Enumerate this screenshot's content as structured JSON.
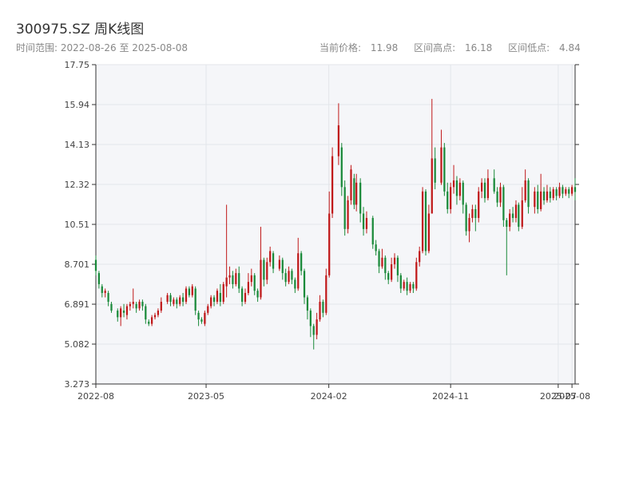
{
  "header": {
    "title": "300975.SZ 周K线图",
    "range_label": "时间范围:",
    "range_start": "2022-08-26",
    "range_sep": "至",
    "range_end": "2025-08-08",
    "current_label": "当前价格:",
    "current_value": "11.98",
    "high_label": "区间高点:",
    "high_value": "16.18",
    "low_label": "区间低点:",
    "low_value": "4.84"
  },
  "colors": {
    "up": "#c0191a",
    "down": "#1a8a3a",
    "grid": "#e3e6ea",
    "plot_bg": "#f5f6f9",
    "axis": "#333333"
  },
  "chart_data": {
    "type": "candlestick",
    "x_ticks": [
      "2022-08",
      "2023-05",
      "2024-02",
      "2024-11",
      "2025-07",
      "2025-08"
    ],
    "y_ticks": [
      "3.273",
      "5.082",
      "6.891",
      "8.701",
      "10.51",
      "12.32",
      "14.13",
      "15.94",
      "17.75"
    ],
    "ylim": [
      3.273,
      17.75
    ],
    "xlim": [
      "2022-08-26",
      "2025-08-08"
    ],
    "candles": [
      [
        "2022-08-26",
        8.9,
        8.4,
        9.1,
        8.2
      ],
      [
        "2022-09-02",
        8.3,
        7.8,
        8.4,
        7.6
      ],
      [
        "2022-09-09",
        7.7,
        7.4,
        7.8,
        7.2
      ],
      [
        "2022-09-16",
        7.4,
        7.5,
        7.6,
        7.2
      ],
      [
        "2022-09-23",
        7.4,
        7.0,
        7.5,
        6.8
      ],
      [
        "2022-09-30",
        6.9,
        6.6,
        7.0,
        6.5
      ],
      [
        "2022-10-14",
        6.6,
        6.3,
        6.7,
        6.1
      ],
      [
        "2022-10-21",
        6.3,
        6.7,
        6.8,
        5.9
      ],
      [
        "2022-10-28",
        6.6,
        6.5,
        6.9,
        6.3
      ],
      [
        "2022-11-04",
        6.4,
        6.8,
        6.9,
        6.2
      ],
      [
        "2022-11-11",
        6.8,
        6.9,
        7.0,
        6.6
      ],
      [
        "2022-11-18",
        6.9,
        7.0,
        7.6,
        6.7
      ],
      [
        "2022-11-25",
        6.9,
        6.7,
        7.0,
        6.5
      ],
      [
        "2022-12-02",
        6.7,
        7.0,
        7.1,
        6.6
      ],
      [
        "2022-12-09",
        7.0,
        6.8,
        7.1,
        6.6
      ],
      [
        "2022-12-16",
        6.8,
        6.2,
        6.9,
        6.0
      ],
      [
        "2022-12-23",
        6.1,
        6.0,
        6.2,
        5.9
      ],
      [
        "2022-12-30",
        6.0,
        6.3,
        6.4,
        5.9
      ],
      [
        "2023-01-06",
        6.3,
        6.4,
        6.5,
        6.2
      ],
      [
        "2023-01-13",
        6.4,
        6.6,
        6.7,
        6.3
      ],
      [
        "2023-01-20",
        6.6,
        7.0,
        7.2,
        6.5
      ],
      [
        "2023-02-03",
        7.0,
        7.3,
        7.4,
        6.9
      ],
      [
        "2023-02-10",
        7.3,
        7.0,
        7.4,
        6.8
      ],
      [
        "2023-02-17",
        6.9,
        7.1,
        7.2,
        6.8
      ],
      [
        "2023-02-24",
        7.1,
        6.9,
        7.2,
        6.7
      ],
      [
        "2023-03-03",
        6.9,
        7.2,
        7.3,
        6.8
      ],
      [
        "2023-03-10",
        7.2,
        7.0,
        7.4,
        6.8
      ],
      [
        "2023-03-17",
        7.0,
        7.6,
        7.7,
        6.9
      ],
      [
        "2023-03-24",
        7.6,
        7.3,
        7.7,
        7.2
      ],
      [
        "2023-03-31",
        7.3,
        7.7,
        7.8,
        7.2
      ],
      [
        "2023-04-07",
        7.6,
        6.6,
        7.7,
        6.4
      ],
      [
        "2023-04-14",
        6.5,
        6.2,
        6.6,
        5.9
      ],
      [
        "2023-04-21",
        6.2,
        6.1,
        6.3,
        6.0
      ],
      [
        "2023-04-28",
        6.0,
        6.5,
        6.6,
        5.9
      ],
      [
        "2023-05-05",
        6.5,
        6.8,
        6.9,
        6.4
      ],
      [
        "2023-05-12",
        6.8,
        7.2,
        7.3,
        6.7
      ],
      [
        "2023-05-19",
        7.2,
        7.0,
        7.3,
        6.8
      ],
      [
        "2023-05-26",
        7.0,
        7.5,
        7.6,
        6.9
      ],
      [
        "2023-06-02",
        7.4,
        7.0,
        7.8,
        6.8
      ],
      [
        "2023-06-09",
        7.0,
        7.8,
        7.9,
        6.9
      ],
      [
        "2023-06-16",
        7.7,
        8.1,
        11.4,
        7.2
      ],
      [
        "2023-06-23",
        8.1,
        8.2,
        8.6,
        7.8
      ],
      [
        "2023-06-30",
        8.2,
        7.8,
        8.4,
        7.6
      ],
      [
        "2023-07-07",
        7.8,
        8.3,
        8.5,
        7.7
      ],
      [
        "2023-07-14",
        8.3,
        7.6,
        8.6,
        7.4
      ],
      [
        "2023-07-21",
        7.6,
        7.0,
        7.7,
        6.8
      ],
      [
        "2023-07-28",
        7.0,
        7.4,
        7.6,
        6.9
      ],
      [
        "2023-08-04",
        7.4,
        7.9,
        8.3,
        7.3
      ],
      [
        "2023-08-11",
        7.9,
        8.2,
        8.5,
        7.7
      ],
      [
        "2023-08-18",
        8.2,
        7.5,
        8.3,
        7.3
      ],
      [
        "2023-08-25",
        7.5,
        7.2,
        7.6,
        7.0
      ],
      [
        "2023-09-01",
        7.2,
        8.9,
        10.4,
        7.1
      ],
      [
        "2023-09-08",
        8.9,
        8.0,
        9.0,
        7.7
      ],
      [
        "2023-09-15",
        8.0,
        8.8,
        9.0,
        7.8
      ],
      [
        "2023-09-22",
        8.8,
        9.3,
        9.5,
        8.6
      ],
      [
        "2023-09-29",
        9.2,
        8.5,
        9.3,
        8.3
      ],
      [
        "2023-10-13",
        8.5,
        8.9,
        9.1,
        8.4
      ],
      [
        "2023-10-20",
        8.9,
        8.3,
        9.0,
        8.0
      ],
      [
        "2023-10-27",
        8.3,
        7.9,
        8.5,
        7.7
      ],
      [
        "2023-11-03",
        7.9,
        8.4,
        8.6,
        7.8
      ],
      [
        "2023-11-10",
        8.4,
        8.0,
        8.5,
        7.8
      ],
      [
        "2023-11-17",
        8.0,
        7.6,
        8.1,
        7.4
      ],
      [
        "2023-11-24",
        7.6,
        9.2,
        9.9,
        7.5
      ],
      [
        "2023-12-01",
        9.2,
        8.4,
        9.3,
        8.2
      ],
      [
        "2023-12-08",
        8.4,
        7.2,
        8.5,
        6.9
      ],
      [
        "2023-12-15",
        7.2,
        6.6,
        7.3,
        6.2
      ],
      [
        "2023-12-22",
        6.6,
        5.9,
        6.7,
        5.4
      ],
      [
        "2023-12-29",
        5.9,
        5.5,
        6.0,
        4.84
      ],
      [
        "2024-01-05",
        5.5,
        6.2,
        6.5,
        5.3
      ],
      [
        "2024-01-12",
        6.2,
        7.0,
        7.3,
        6.1
      ],
      [
        "2024-01-19",
        7.0,
        6.5,
        7.1,
        6.3
      ],
      [
        "2024-01-26",
        6.5,
        8.2,
        8.5,
        6.4
      ],
      [
        "2024-02-02",
        8.2,
        11.0,
        12.0,
        8.1
      ],
      [
        "2024-02-09",
        11.0,
        13.6,
        14.0,
        10.8
      ],
      [
        "2024-02-23",
        13.6,
        15.0,
        16.0,
        13.2
      ],
      [
        "2024-03-01",
        14.0,
        12.2,
        14.2,
        11.8
      ],
      [
        "2024-03-08",
        12.2,
        10.3,
        12.5,
        10.0
      ],
      [
        "2024-03-15",
        10.3,
        11.6,
        11.8,
        10.1
      ],
      [
        "2024-03-22",
        11.6,
        13.0,
        13.2,
        11.4
      ],
      [
        "2024-03-29",
        12.6,
        11.4,
        12.8,
        11.2
      ],
      [
        "2024-04-03",
        11.4,
        12.4,
        12.8,
        11.1
      ],
      [
        "2024-04-12",
        12.4,
        11.0,
        12.6,
        10.6
      ],
      [
        "2024-04-19",
        11.0,
        10.3,
        11.3,
        10.0
      ],
      [
        "2024-04-26",
        10.3,
        10.8,
        11.1,
        10.1
      ],
      [
        "2024-05-10",
        10.8,
        9.6,
        10.9,
        9.4
      ],
      [
        "2024-05-17",
        9.6,
        9.3,
        9.8,
        9.1
      ],
      [
        "2024-05-24",
        9.3,
        8.6,
        9.4,
        8.3
      ],
      [
        "2024-05-31",
        8.6,
        9.0,
        9.4,
        8.5
      ],
      [
        "2024-06-07",
        9.0,
        8.3,
        9.1,
        8.0
      ],
      [
        "2024-06-14",
        8.3,
        8.0,
        8.4,
        7.8
      ],
      [
        "2024-06-21",
        8.0,
        8.7,
        9.0,
        7.9
      ],
      [
        "2024-06-28",
        8.7,
        9.0,
        9.2,
        8.5
      ],
      [
        "2024-07-05",
        9.0,
        8.2,
        9.1,
        7.9
      ],
      [
        "2024-07-12",
        8.2,
        7.6,
        8.3,
        7.4
      ],
      [
        "2024-07-19",
        7.6,
        7.9,
        8.0,
        7.5
      ],
      [
        "2024-07-26",
        7.9,
        7.5,
        8.1,
        7.3
      ],
      [
        "2024-08-02",
        7.5,
        7.8,
        7.9,
        7.4
      ],
      [
        "2024-08-09",
        7.8,
        7.6,
        7.9,
        7.4
      ],
      [
        "2024-08-16",
        7.6,
        8.8,
        9.0,
        7.5
      ],
      [
        "2024-08-23",
        8.8,
        9.3,
        9.5,
        8.6
      ],
      [
        "2024-08-30",
        9.3,
        12.0,
        12.2,
        9.2
      ],
      [
        "2024-09-06",
        12.0,
        9.3,
        12.1,
        9.1
      ],
      [
        "2024-09-13",
        9.3,
        11.0,
        11.4,
        9.2
      ],
      [
        "2024-09-20",
        11.0,
        13.5,
        16.2,
        11.0
      ],
      [
        "2024-09-27",
        13.5,
        12.4,
        14.0,
        12.1
      ],
      [
        "2024-10-11",
        12.4,
        14.0,
        14.8,
        12.3
      ],
      [
        "2024-10-18",
        14.0,
        12.0,
        14.2,
        11.8
      ],
      [
        "2024-10-25",
        12.0,
        11.2,
        12.4,
        11.0
      ],
      [
        "2024-11-01",
        11.2,
        12.2,
        12.4,
        11.0
      ],
      [
        "2024-11-08",
        12.2,
        12.5,
        13.2,
        11.9
      ],
      [
        "2024-11-15",
        12.5,
        11.8,
        12.7,
        11.4
      ],
      [
        "2024-11-22",
        11.8,
        12.4,
        12.6,
        11.6
      ],
      [
        "2024-11-29",
        12.4,
        11.4,
        12.5,
        11.0
      ],
      [
        "2024-12-06",
        11.4,
        10.2,
        11.5,
        10.0
      ],
      [
        "2024-12-13",
        10.2,
        10.8,
        11.0,
        9.7
      ],
      [
        "2024-12-20",
        10.8,
        11.2,
        11.4,
        10.6
      ],
      [
        "2024-12-27",
        11.2,
        10.8,
        11.4,
        10.2
      ],
      [
        "2025-01-03",
        10.8,
        12.0,
        12.2,
        10.6
      ],
      [
        "2025-01-10",
        12.0,
        12.4,
        12.6,
        11.7
      ],
      [
        "2025-01-17",
        12.4,
        11.7,
        12.6,
        11.5
      ],
      [
        "2025-01-24",
        11.7,
        12.6,
        13.0,
        11.6
      ],
      [
        "2025-02-07",
        12.6,
        12.0,
        13.0,
        11.9
      ],
      [
        "2025-02-14",
        12.0,
        11.5,
        12.2,
        11.3
      ],
      [
        "2025-02-21",
        11.5,
        12.2,
        12.4,
        11.3
      ],
      [
        "2025-02-28",
        12.2,
        10.7,
        12.3,
        10.4
      ],
      [
        "2025-03-07",
        10.7,
        10.4,
        10.8,
        8.2
      ],
      [
        "2025-03-14",
        10.4,
        11.0,
        11.2,
        10.2
      ],
      [
        "2025-03-21",
        11.0,
        10.8,
        11.3,
        10.6
      ],
      [
        "2025-03-28",
        10.8,
        11.4,
        11.6,
        10.6
      ],
      [
        "2025-04-03",
        11.4,
        10.4,
        11.5,
        10.2
      ],
      [
        "2025-04-11",
        10.4,
        11.6,
        12.2,
        10.3
      ],
      [
        "2025-04-18",
        11.6,
        12.5,
        13.0,
        11.5
      ],
      [
        "2025-04-25",
        12.5,
        11.3,
        12.6,
        11.0
      ],
      [
        "2025-05-09",
        11.3,
        12.0,
        12.2,
        11.0
      ],
      [
        "2025-05-16",
        12.0,
        11.2,
        12.3,
        11.0
      ],
      [
        "2025-05-23",
        11.2,
        12.0,
        12.8,
        11.1
      ],
      [
        "2025-05-30",
        12.0,
        11.6,
        12.2,
        11.4
      ],
      [
        "2025-06-06",
        11.6,
        12.0,
        12.3,
        11.5
      ],
      [
        "2025-06-13",
        12.0,
        11.7,
        12.2,
        11.5
      ],
      [
        "2025-06-20",
        11.7,
        12.1,
        12.2,
        11.6
      ],
      [
        "2025-06-27",
        12.1,
        11.8,
        12.2,
        11.6
      ],
      [
        "2025-07-04",
        11.8,
        12.2,
        12.4,
        11.7
      ],
      [
        "2025-07-11",
        12.2,
        11.9,
        12.3,
        11.7
      ],
      [
        "2025-07-18",
        11.9,
        12.1,
        12.2,
        11.8
      ],
      [
        "2025-07-25",
        12.1,
        11.9,
        12.2,
        11.7
      ],
      [
        "2025-08-01",
        11.9,
        12.2,
        12.3,
        11.8
      ],
      [
        "2025-08-08",
        12.2,
        11.98,
        12.6,
        11.6
      ]
    ]
  }
}
